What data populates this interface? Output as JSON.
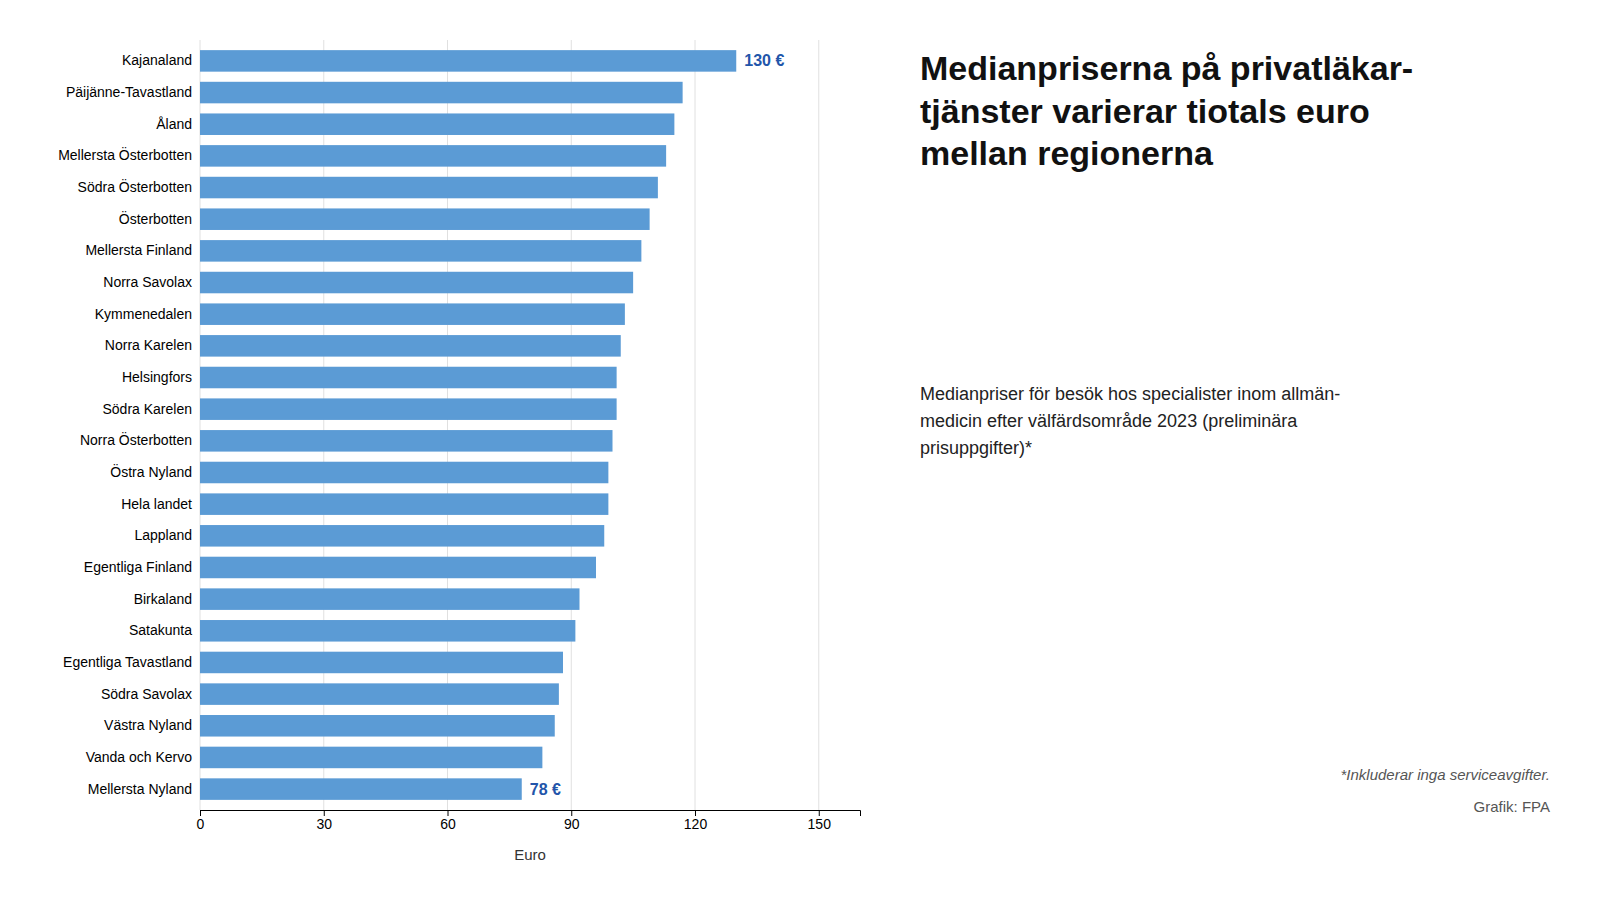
{
  "chart_data": {
    "type": "bar",
    "orientation": "horizontal",
    "title": "Medianpriserna på privatläkar-\ntjänster varierar tiotals euro\nmellan regionerna",
    "subtitle": "Medianpriser för besök hos specialister inom allmän-\nmedicin efter välfärdsområde 2023 (preliminära\nprisuppgifter)*",
    "annotations": [
      "*Inkluderar inga serviceavgifter.",
      "Grafik: FPA"
    ],
    "x_label": "Euro",
    "categories": [
      "Kajanaland",
      "Päijänne-Tavastland",
      "Åland",
      "Mellersta Österbotten",
      "Södra Österbotten",
      "Österbotten",
      "Mellersta Finland",
      "Norra Savolax",
      "Kymmenedalen",
      "Norra Karelen",
      "Helsingfors",
      "Södra Karelen",
      "Norra Österbotten",
      "Östra Nyland",
      "Hela landet",
      "Lappland",
      "Egentliga Finland",
      "Birkaland",
      "Satakunta",
      "Egentliga Tavastland",
      "Södra Savolax",
      "Västra Nyland",
      "Vanda och Kervo",
      "Mellersta Nyland"
    ],
    "values": [
      130,
      117,
      115,
      113,
      111,
      109,
      107,
      105,
      103,
      102,
      101,
      101,
      100,
      99,
      99,
      98,
      96,
      92,
      91,
      88,
      87,
      86,
      83,
      78
    ],
    "value_labels": [
      "130 €",
      null,
      null,
      null,
      null,
      null,
      null,
      null,
      null,
      null,
      null,
      null,
      null,
      null,
      null,
      null,
      null,
      null,
      null,
      null,
      null,
      null,
      null,
      "78 €"
    ],
    "color": "#5b9bd5",
    "xlim": [
      0,
      160
    ],
    "xticks": [
      0,
      30,
      60,
      90,
      120,
      150
    ],
    "grid": true
  }
}
